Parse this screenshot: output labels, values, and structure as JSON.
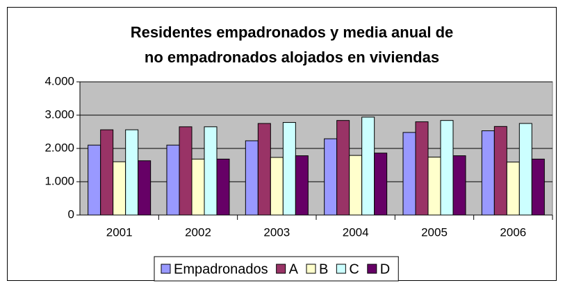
{
  "chart_data": {
    "type": "bar",
    "title": [
      "Residentes empadronados y media anual de",
      "no empadronados alojados en viviendas"
    ],
    "categories": [
      "2001",
      "2002",
      "2003",
      "2004",
      "2005",
      "2006"
    ],
    "series": [
      {
        "name": "Empadronados",
        "color": "#9999ff",
        "values": [
          2100,
          2100,
          2230,
          2290,
          2480,
          2530
        ]
      },
      {
        "name": "A",
        "color": "#993366",
        "values": [
          2560,
          2650,
          2750,
          2840,
          2800,
          2660
        ]
      },
      {
        "name": "B",
        "color": "#ffffcc",
        "values": [
          1600,
          1680,
          1730,
          1790,
          1740,
          1590
        ]
      },
      {
        "name": "C",
        "color": "#ccffff",
        "values": [
          2560,
          2650,
          2780,
          2940,
          2840,
          2750
        ]
      },
      {
        "name": "D",
        "color": "#660066",
        "values": [
          1630,
          1680,
          1780,
          1860,
          1780,
          1680
        ]
      }
    ],
    "ylim": [
      0,
      4000
    ],
    "yticks": [
      0,
      {
        "value": 1000,
        "label": "1.000"
      },
      {
        "value": 2000,
        "label": "2.000"
      },
      {
        "value": 3000,
        "label": "3.000"
      },
      {
        "value": 4000,
        "label": "4.000"
      }
    ],
    "grid": true,
    "plot_background": "#c0c0c0",
    "legend": "bottom"
  }
}
